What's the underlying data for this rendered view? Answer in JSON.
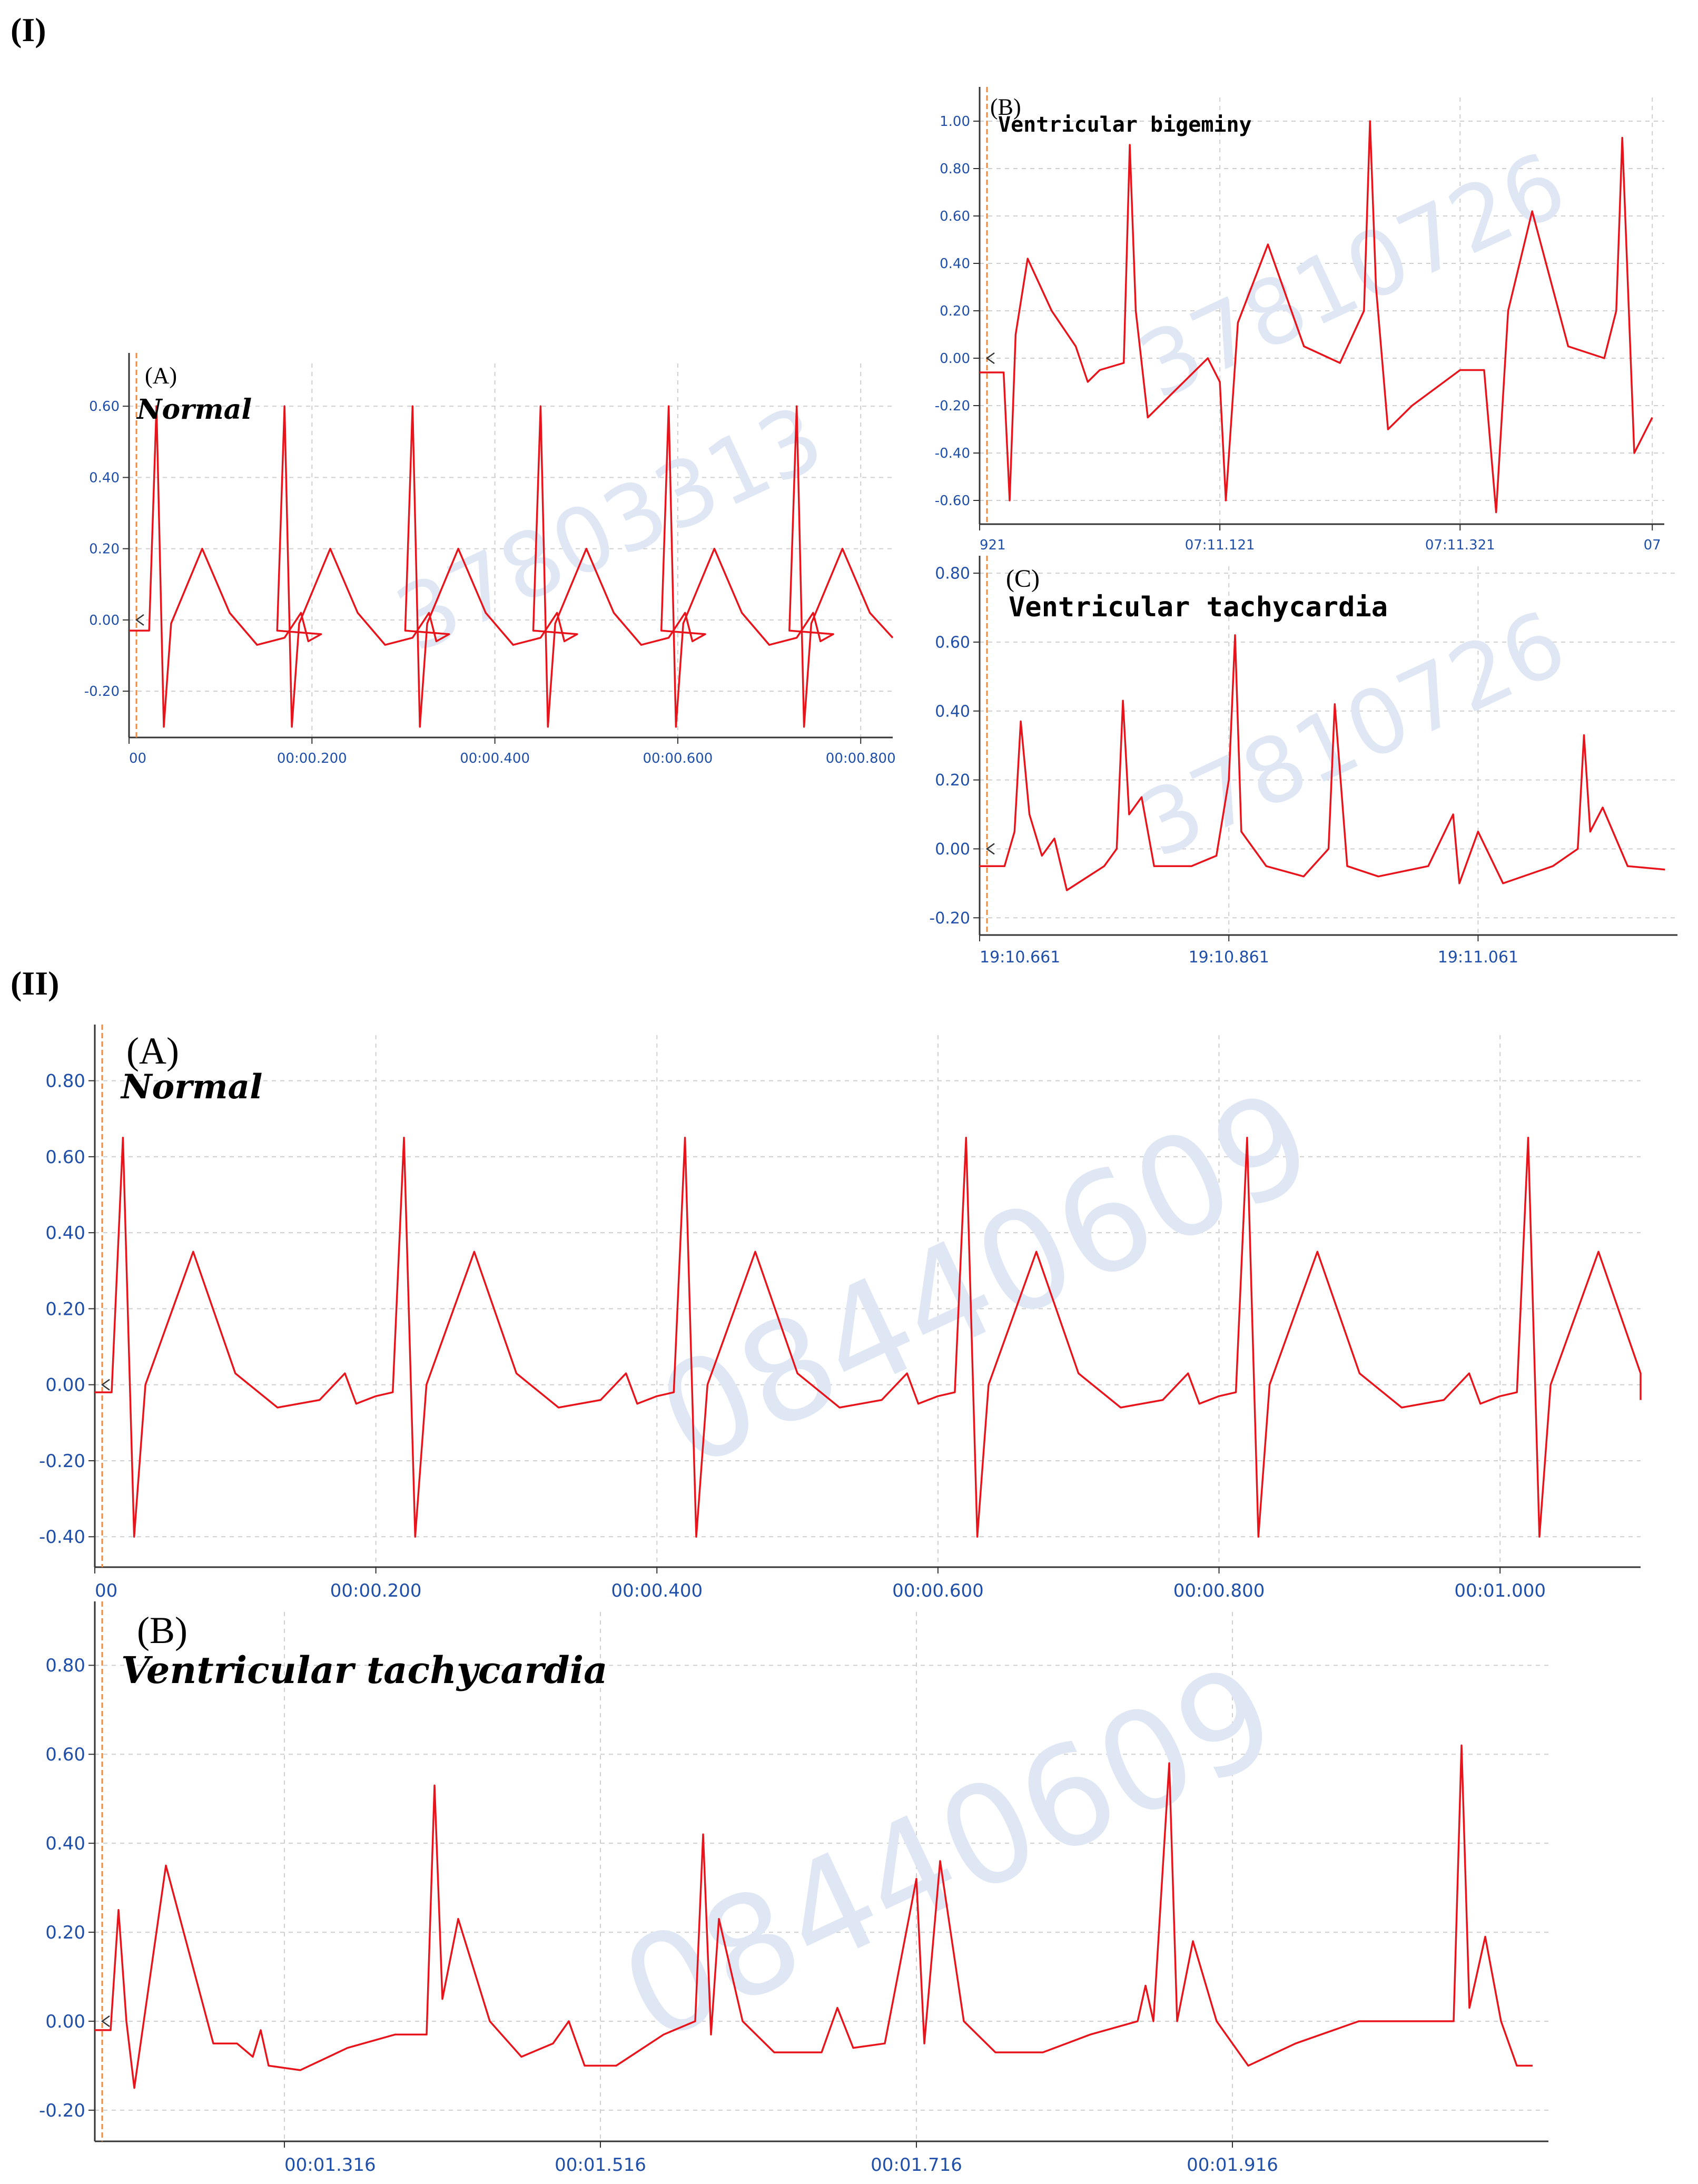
{
  "sections": [
    {
      "label": "(I)"
    },
    {
      "label": "(II)"
    }
  ],
  "chart_data": [
    {
      "type": "line",
      "panel": "(A)",
      "annotation": "Normal",
      "watermark": "37803313",
      "xlabel": "",
      "ylabel": "",
      "x_unit": "seconds",
      "xlim": [
        0,
        0.835
      ],
      "ylim": [
        -0.33,
        0.72
      ],
      "y_ticks": [
        "0.60",
        "0.40",
        "0.20",
        "0.00",
        "-0.20"
      ],
      "y_tick_values": [
        0.6,
        0.4,
        0.2,
        0.0,
        -0.2
      ],
      "x_ticks": [
        "00",
        "00:00.200",
        "00:00.400",
        "00:00.600",
        "00:00.800"
      ],
      "x_tick_values": [
        0.0,
        0.2,
        0.4,
        0.6,
        0.8
      ],
      "grid": true,
      "series": [
        {
          "values_note": "",
          "beats": [
            0.03,
            0.17,
            0.31,
            0.45,
            0.59,
            0.73
          ],
          "r_peak": 0.6,
          "s_trough": -0.3,
          "t_peak": 0.2,
          "baseline": -0.03
        }
      ]
    },
    {
      "type": "line",
      "panel": "(B)",
      "annotation": "Ventricular bigeminy",
      "watermark": "37810726",
      "xlabel": "",
      "ylabel": "",
      "x_unit": "seconds",
      "xlim": [
        0,
        0.57
      ],
      "ylim": [
        -0.7,
        1.1
      ],
      "y_ticks": [
        "1.00",
        "0.80",
        "0.60",
        "0.40",
        "0.20",
        "0.00",
        "-0.20",
        "-0.40",
        "-0.60"
      ],
      "y_tick_values": [
        1.0,
        0.8,
        0.6,
        0.4,
        0.2,
        0.0,
        -0.2,
        -0.4,
        -0.6
      ],
      "x_ticks": [
        "921",
        "07:11.121",
        "07:11.321",
        "07"
      ],
      "x_tick_values": [
        0.0,
        0.2,
        0.4,
        0.56
      ],
      "grid": true,
      "series": [
        {
          "points": [
            [
              0.0,
              -0.06
            ],
            [
              0.02,
              -0.06
            ],
            [
              0.025,
              -0.6
            ],
            [
              0.03,
              0.1
            ],
            [
              0.04,
              0.42
            ],
            [
              0.06,
              0.2
            ],
            [
              0.08,
              0.05
            ],
            [
              0.09,
              -0.1
            ],
            [
              0.1,
              -0.05
            ],
            [
              0.12,
              -0.02
            ],
            [
              0.125,
              0.9
            ],
            [
              0.13,
              0.2
            ],
            [
              0.14,
              -0.25
            ],
            [
              0.16,
              -0.15
            ],
            [
              0.19,
              0.0
            ],
            [
              0.2,
              -0.1
            ],
            [
              0.205,
              -0.6
            ],
            [
              0.215,
              0.15
            ],
            [
              0.24,
              0.48
            ],
            [
              0.27,
              0.05
            ],
            [
              0.3,
              -0.02
            ],
            [
              0.32,
              0.2
            ],
            [
              0.325,
              1.0
            ],
            [
              0.33,
              0.3
            ],
            [
              0.34,
              -0.3
            ],
            [
              0.36,
              -0.2
            ],
            [
              0.4,
              -0.05
            ],
            [
              0.42,
              -0.05
            ],
            [
              0.43,
              -0.65
            ],
            [
              0.44,
              0.2
            ],
            [
              0.46,
              0.62
            ],
            [
              0.49,
              0.05
            ],
            [
              0.52,
              0.0
            ],
            [
              0.53,
              0.2
            ],
            [
              0.535,
              0.93
            ],
            [
              0.545,
              -0.4
            ],
            [
              0.56,
              -0.25
            ]
          ]
        }
      ]
    },
    {
      "type": "line",
      "panel": "(C)",
      "annotation": "Ventricular tachycardia",
      "watermark": "37810726",
      "xlabel": "",
      "ylabel": "",
      "x_unit": "seconds",
      "xlim": [
        0,
        0.56
      ],
      "ylim": [
        -0.25,
        0.82
      ],
      "y_ticks": [
        "0.80",
        "0.60",
        "0.40",
        "0.20",
        "0.00",
        "-0.20"
      ],
      "y_tick_values": [
        0.8,
        0.6,
        0.4,
        0.2,
        0.0,
        -0.2
      ],
      "x_ticks": [
        "19:10.661",
        "19:10.861",
        "19:11.061"
      ],
      "x_tick_values": [
        0.0,
        0.2,
        0.4
      ],
      "grid": true,
      "series": [
        {
          "points": [
            [
              0.0,
              -0.05
            ],
            [
              0.02,
              -0.05
            ],
            [
              0.028,
              0.05
            ],
            [
              0.033,
              0.37
            ],
            [
              0.04,
              0.1
            ],
            [
              0.05,
              -0.02
            ],
            [
              0.06,
              0.03
            ],
            [
              0.07,
              -0.12
            ],
            [
              0.1,
              -0.05
            ],
            [
              0.11,
              0.0
            ],
            [
              0.115,
              0.43
            ],
            [
              0.12,
              0.1
            ],
            [
              0.13,
              0.15
            ],
            [
              0.14,
              -0.05
            ],
            [
              0.17,
              -0.05
            ],
            [
              0.19,
              -0.02
            ],
            [
              0.2,
              0.2
            ],
            [
              0.205,
              0.62
            ],
            [
              0.21,
              0.05
            ],
            [
              0.23,
              -0.05
            ],
            [
              0.26,
              -0.08
            ],
            [
              0.28,
              0.0
            ],
            [
              0.285,
              0.42
            ],
            [
              0.295,
              -0.05
            ],
            [
              0.32,
              -0.08
            ],
            [
              0.36,
              -0.05
            ],
            [
              0.38,
              0.1
            ],
            [
              0.385,
              -0.1
            ],
            [
              0.4,
              0.05
            ],
            [
              0.42,
              -0.1
            ],
            [
              0.46,
              -0.05
            ],
            [
              0.48,
              0.0
            ],
            [
              0.485,
              0.33
            ],
            [
              0.49,
              0.05
            ],
            [
              0.5,
              0.12
            ],
            [
              0.52,
              -0.05
            ],
            [
              0.55,
              -0.06
            ]
          ]
        }
      ]
    },
    {
      "type": "line",
      "panel": "(A)",
      "annotation": "Normal",
      "watermark": "08440609",
      "xlabel": "",
      "ylabel": "",
      "x_unit": "seconds",
      "xlim": [
        0,
        1.1
      ],
      "ylim": [
        -0.48,
        0.92
      ],
      "y_ticks": [
        "0.80",
        "0.60",
        "0.40",
        "0.20",
        "0.00",
        "-0.20",
        "-0.40"
      ],
      "y_tick_values": [
        0.8,
        0.6,
        0.4,
        0.2,
        0.0,
        -0.2,
        -0.4
      ],
      "x_ticks": [
        "00",
        "00:00.200",
        "00:00.400",
        "00:00.600",
        "00:00.800",
        "00:01.000"
      ],
      "x_tick_values": [
        0.0,
        0.2,
        0.4,
        0.6,
        0.8,
        1.0
      ],
      "grid": true,
      "series": [
        {
          "beats": [
            0.02,
            0.22,
            0.42,
            0.62,
            0.82,
            1.02
          ],
          "r_peak": 0.65,
          "s_trough": -0.4,
          "t_peak": 0.35,
          "baseline": -0.02
        }
      ]
    },
    {
      "type": "line",
      "panel": "(B)",
      "annotation": "Ventricular tachycardia",
      "watermark": "08440609",
      "xlabel": "",
      "ylabel": "",
      "x_unit": "seconds",
      "xlim": [
        0,
        0.92
      ],
      "ylim": [
        -0.27,
        0.92
      ],
      "y_ticks": [
        "0.80",
        "0.60",
        "0.40",
        "0.20",
        "0.00",
        "-0.20"
      ],
      "y_tick_values": [
        0.8,
        0.6,
        0.4,
        0.2,
        0.0,
        -0.2
      ],
      "x_ticks": [
        "00:01.316",
        "00:01.516",
        "00:01.716",
        "00:01.916"
      ],
      "x_tick_values": [
        0.12,
        0.32,
        0.52,
        0.72
      ],
      "grid": true,
      "series": [
        {
          "points": [
            [
              0.0,
              -0.02
            ],
            [
              0.01,
              -0.02
            ],
            [
              0.015,
              0.25
            ],
            [
              0.02,
              0.0
            ],
            [
              0.025,
              -0.15
            ],
            [
              0.035,
              0.1
            ],
            [
              0.045,
              0.35
            ],
            [
              0.06,
              0.15
            ],
            [
              0.075,
              -0.05
            ],
            [
              0.09,
              -0.05
            ],
            [
              0.1,
              -0.08
            ],
            [
              0.105,
              -0.02
            ],
            [
              0.11,
              -0.1
            ],
            [
              0.13,
              -0.11
            ],
            [
              0.16,
              -0.06
            ],
            [
              0.19,
              -0.03
            ],
            [
              0.21,
              -0.03
            ],
            [
              0.215,
              0.53
            ],
            [
              0.22,
              0.05
            ],
            [
              0.23,
              0.23
            ],
            [
              0.25,
              0.0
            ],
            [
              0.27,
              -0.08
            ],
            [
              0.29,
              -0.05
            ],
            [
              0.3,
              0.0
            ],
            [
              0.31,
              -0.1
            ],
            [
              0.33,
              -0.1
            ],
            [
              0.36,
              -0.03
            ],
            [
              0.38,
              0.0
            ],
            [
              0.385,
              0.42
            ],
            [
              0.39,
              -0.03
            ],
            [
              0.395,
              0.23
            ],
            [
              0.41,
              0.0
            ],
            [
              0.43,
              -0.07
            ],
            [
              0.46,
              -0.07
            ],
            [
              0.47,
              0.03
            ],
            [
              0.48,
              -0.06
            ],
            [
              0.5,
              -0.05
            ],
            [
              0.52,
              0.32
            ],
            [
              0.525,
              -0.05
            ],
            [
              0.535,
              0.36
            ],
            [
              0.55,
              0.0
            ],
            [
              0.57,
              -0.07
            ],
            [
              0.6,
              -0.07
            ],
            [
              0.63,
              -0.03
            ],
            [
              0.66,
              0.0
            ],
            [
              0.665,
              0.08
            ],
            [
              0.67,
              0.0
            ],
            [
              0.68,
              0.58
            ],
            [
              0.685,
              0.0
            ],
            [
              0.695,
              0.18
            ],
            [
              0.71,
              0.0
            ],
            [
              0.73,
              -0.1
            ],
            [
              0.76,
              -0.05
            ],
            [
              0.8,
              0.0
            ],
            [
              0.85,
              0.0
            ],
            [
              0.86,
              0.0
            ],
            [
              0.865,
              0.62
            ],
            [
              0.87,
              0.03
            ],
            [
              0.88,
              0.19
            ],
            [
              0.89,
              0.0
            ],
            [
              0.9,
              -0.1
            ],
            [
              0.91,
              -0.1
            ]
          ]
        }
      ]
    }
  ]
}
